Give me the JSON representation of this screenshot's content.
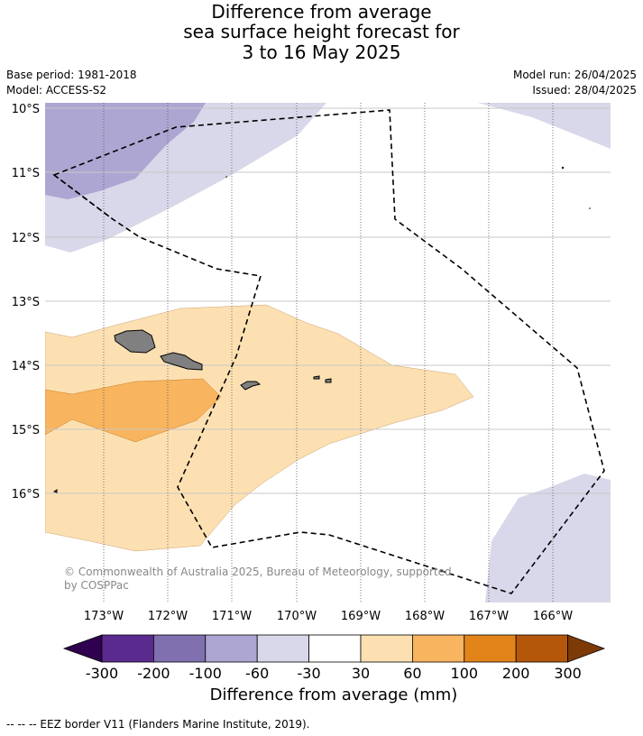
{
  "title": {
    "line1": "Difference from average",
    "line2": "sea surface height forecast for",
    "line3": "3 to 16 May 2025"
  },
  "meta": {
    "base_period": "Base period: 1981-2018",
    "model": "Model: ACCESS-S2",
    "model_run": "Model run: 26/04/2025",
    "issued": "Issued: 28/04/2025"
  },
  "map": {
    "lat_labels": [
      "10°S",
      "11°S",
      "12°S",
      "13°S",
      "14°S",
      "15°S",
      "16°S"
    ],
    "lon_labels": [
      "173°W",
      "172°W",
      "171°W",
      "170°W",
      "169°W",
      "168°W",
      "167°W",
      "166°W"
    ],
    "copyright_line1": "© Commonwealth of Australia 2025, Bureau of Meteorology, supported",
    "copyright_line2": "by COSPPac"
  },
  "colorbar": {
    "ticks": [
      "-300",
      "-200",
      "-100",
      "-60",
      "-30",
      "30",
      "60",
      "100",
      "200",
      "300"
    ],
    "colors": [
      "#5a2a8e",
      "#8070b0",
      "#ada6d2",
      "#d8d8ea",
      "#ffffff",
      "#fde0b2",
      "#f8b45e",
      "#e3841a",
      "#b4570b"
    ],
    "under_color": "#300050",
    "over_color": "#7d3a07",
    "label": "Difference from average (mm)"
  },
  "footnote": "-- -- -- EEZ border V11 (Flanders Marine Institute, 2019).",
  "colors": {
    "land": "#808080",
    "neg_60_30": "#d8d8ea",
    "neg_100_60": "#ada6d2",
    "pos_30_60": "#fde0b2",
    "pos_60_100": "#f8b45e"
  }
}
